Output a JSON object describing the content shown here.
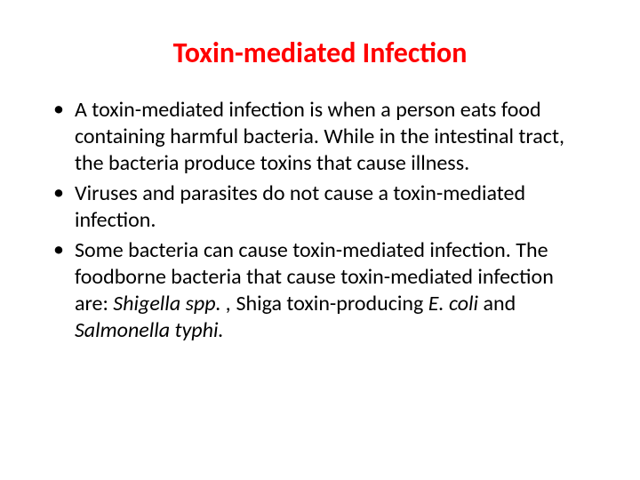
{
  "title": {
    "text": "Toxin-mediated Infection",
    "color": "#ff0000",
    "fontsize": 32
  },
  "bullets": {
    "marker": "•",
    "marker_color": "#000000",
    "fontsize": 24,
    "text_color": "#000000",
    "items": [
      {
        "text": "A toxin-mediated infection is when a person eats food containing harmful bacteria. While in the intestinal tract, the bacteria produce toxins that cause illness."
      },
      {
        "text": "Viruses and parasites do not cause a toxin-mediated infection."
      },
      {
        "prefix": "Some bacteria can cause toxin-mediated infection. The foodborne bacteria that cause toxin-mediated infection are: ",
        "italic1": "Shigella spp. , ",
        "mid1": "Shiga toxin-producing ",
        "italic2": "E. coli ",
        "mid2": "and ",
        "italic3": "Salmonella typhi.",
        "suffix": ""
      }
    ]
  },
  "background_color": "#ffffff"
}
